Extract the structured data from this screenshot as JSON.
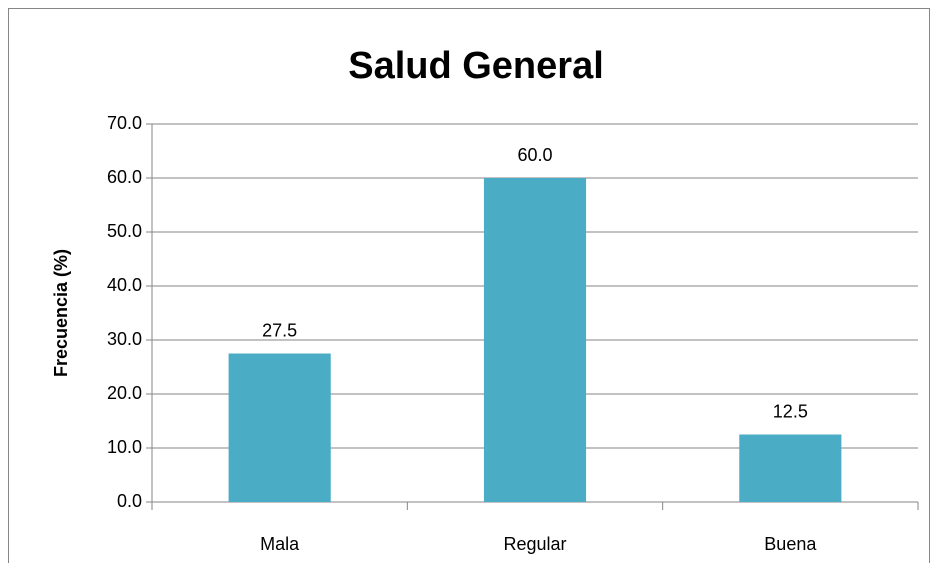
{
  "chart_data": {
    "type": "bar",
    "title": "Salud General",
    "y_label": "Frecuencia (%)",
    "categories": [
      "Mala",
      "Regular",
      "Buena"
    ],
    "values": [
      27.5,
      60,
      12.5
    ],
    "value_labels": [
      "27.5",
      "60.0",
      "12.5"
    ],
    "color": "#4bacc6",
    "ylim": [
      0,
      70
    ],
    "yticks": [
      {
        "value": 0,
        "label": "0.0"
      },
      {
        "value": 10,
        "label": "10.0"
      },
      {
        "value": 20,
        "label": "20.0"
      },
      {
        "value": 30,
        "label": "30.0"
      },
      {
        "value": 40,
        "label": "40.0"
      },
      {
        "value": 50,
        "label": "50.0"
      },
      {
        "value": 60,
        "label": "60.0"
      },
      {
        "value": 70,
        "label": "70.0"
      }
    ],
    "grid": true
  }
}
